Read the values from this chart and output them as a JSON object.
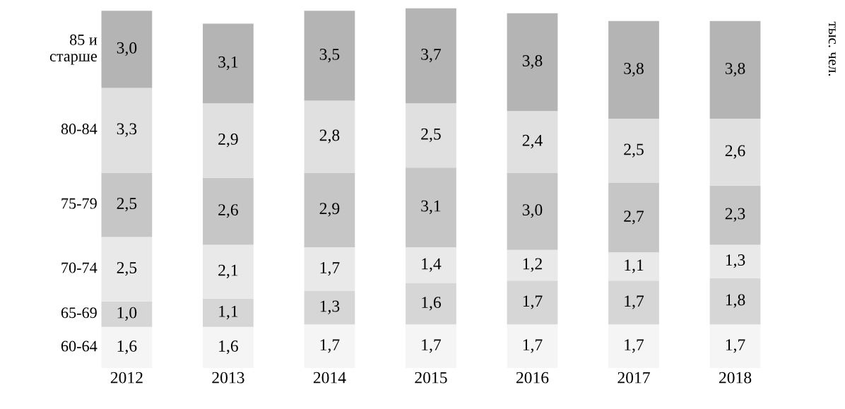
{
  "chart_data": {
    "type": "bar",
    "stacked": true,
    "ylabel": "тыс. чел.",
    "tick_labels": "x",
    "grid": false,
    "legend": false,
    "categories": [
      "2012",
      "2013",
      "2014",
      "2015",
      "2016",
      "2017",
      "2018"
    ],
    "series": [
      {
        "name": "60-64",
        "color": "#f5f5f5",
        "values": [
          1.6,
          1.6,
          1.7,
          1.7,
          1.7,
          1.7,
          1.7
        ],
        "value_labels": [
          "1,6",
          "1,6",
          "1,7",
          "1,7",
          "1,7",
          "1,7",
          "1,7"
        ]
      },
      {
        "name": "65-69",
        "color": "#d6d6d6",
        "values": [
          1.0,
          1.1,
          1.3,
          1.6,
          1.7,
          1.7,
          1.8
        ],
        "value_labels": [
          "1,0",
          "1,1",
          "1,3",
          "1,6",
          "1,7",
          "1,7",
          "1,8"
        ]
      },
      {
        "name": "70-74",
        "color": "#e9e9e9",
        "values": [
          2.5,
          2.1,
          1.7,
          1.4,
          1.2,
          1.1,
          1.3
        ],
        "value_labels": [
          "2,5",
          "2,1",
          "1,7",
          "1,4",
          "1,2",
          "1,1",
          "1,3"
        ]
      },
      {
        "name": "75-79",
        "color": "#c6c6c6",
        "values": [
          2.5,
          2.6,
          2.9,
          3.1,
          3.0,
          2.7,
          2.3
        ],
        "value_labels": [
          "2,5",
          "2,6",
          "2,9",
          "3,1",
          "3,0",
          "2,7",
          "2,3"
        ]
      },
      {
        "name": "80-84",
        "color": "#e0e0e0",
        "values": [
          3.3,
          2.9,
          2.8,
          2.5,
          2.4,
          2.5,
          2.6
        ],
        "value_labels": [
          "3,3",
          "2,9",
          "2,8",
          "2,5",
          "2,4",
          "2,5",
          "2,6"
        ]
      },
      {
        "name": "85 и\nстарше",
        "color": "#b4b4b4",
        "values": [
          3.0,
          3.1,
          3.5,
          3.7,
          3.8,
          3.8,
          3.8
        ],
        "value_labels": [
          "3,0",
          "3,1",
          "3,5",
          "3,7",
          "3,8",
          "3,8",
          "3,8"
        ]
      }
    ]
  }
}
